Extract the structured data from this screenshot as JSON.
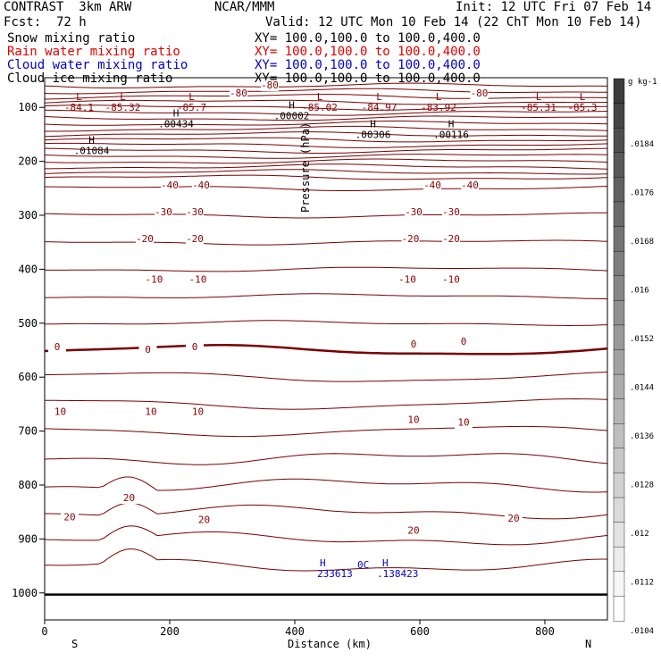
{
  "header": {
    "model": "CONTRAST  3km ARW",
    "org": "NCAR/MMM",
    "init": "Init: 12 UTC Fri 07 Feb 14",
    "fcst_label": "Fcst:",
    "fcst_value": "72 h",
    "valid": "Valid: 12 UTC Mon 10 Feb 14 (22 ChT Mon 10 Feb 14)"
  },
  "legend": [
    {
      "label": "Snow mixing ratio",
      "xy": "XY= 100.0,100.0 to 100.0,400.0",
      "color": "#000000"
    },
    {
      "label": "Rain water mixing ratio",
      "xy": "XY= 100.0,100.0 to 100.0,400.0",
      "color": "#e00000"
    },
    {
      "label": "Cloud water mixing ratio",
      "xy": "XY= 100.0,100.0 to 100.0,400.0",
      "color": "#0000cc"
    },
    {
      "label": "Cloud ice mixing ratio",
      "xy": "XY= 100.0,100.0 to 100.0,400.0",
      "color": "#000000"
    }
  ],
  "chart_data": {
    "type": "cross-section contour",
    "xlabel": "Distance (km)",
    "ylabel": "Pressure (hPa)",
    "xlim": [
      0,
      900
    ],
    "ylim": [
      1050,
      45
    ],
    "xticks": [
      0,
      200,
      400,
      600,
      800
    ],
    "yticks": [
      100,
      200,
      300,
      400,
      500,
      600,
      700,
      800,
      900,
      1000
    ],
    "x_end_labels": [
      "S",
      "N"
    ],
    "temperature_labels": [
      {
        "text": "-80",
        "x": 360,
        "p": 65
      },
      {
        "text": "-80",
        "x": 310,
        "p": 80
      },
      {
        "text": "-80",
        "x": 695,
        "p": 80
      },
      {
        "text": "-40",
        "x": 200,
        "p": 250
      },
      {
        "text": "-40",
        "x": 250,
        "p": 250
      },
      {
        "text": "-40",
        "x": 620,
        "p": 250
      },
      {
        "text": "-40",
        "x": 680,
        "p": 250
      },
      {
        "text": "-30",
        "x": 190,
        "p": 300
      },
      {
        "text": "-30",
        "x": 240,
        "p": 300
      },
      {
        "text": "-30",
        "x": 590,
        "p": 300
      },
      {
        "text": "-30",
        "x": 650,
        "p": 300
      },
      {
        "text": "-20",
        "x": 160,
        "p": 350
      },
      {
        "text": "-20",
        "x": 240,
        "p": 350
      },
      {
        "text": "-20",
        "x": 585,
        "p": 350
      },
      {
        "text": "-20",
        "x": 650,
        "p": 350
      },
      {
        "text": "-10",
        "x": 175,
        "p": 425
      },
      {
        "text": "-10",
        "x": 245,
        "p": 425
      },
      {
        "text": "-10",
        "x": 580,
        "p": 425
      },
      {
        "text": "-10",
        "x": 650,
        "p": 425
      },
      {
        "text": "0",
        "x": 20,
        "p": 550
      },
      {
        "text": "0",
        "x": 165,
        "p": 555
      },
      {
        "text": "0",
        "x": 240,
        "p": 550
      },
      {
        "text": "0",
        "x": 590,
        "p": 545
      },
      {
        "text": "0",
        "x": 670,
        "p": 540
      },
      {
        "text": "10",
        "x": 25,
        "p": 670
      },
      {
        "text": "10",
        "x": 170,
        "p": 670
      },
      {
        "text": "10",
        "x": 245,
        "p": 670
      },
      {
        "text": "10",
        "x": 590,
        "p": 685
      },
      {
        "text": "10",
        "x": 670,
        "p": 690
      },
      {
        "text": "20",
        "x": 40,
        "p": 865
      },
      {
        "text": "20",
        "x": 135,
        "p": 830
      },
      {
        "text": "20",
        "x": 255,
        "p": 870
      },
      {
        "text": "20",
        "x": 590,
        "p": 890
      },
      {
        "text": "20",
        "x": 750,
        "p": 868
      }
    ],
    "lows": [
      {
        "value": "-84.1",
        "x": 55
      },
      {
        "value": "-85.32",
        "x": 125
      },
      {
        "value": "-85.7",
        "x": 235
      },
      {
        "value": "-85.02",
        "x": 440
      },
      {
        "value": "-84.97",
        "x": 535
      },
      {
        "value": "-83.92",
        "x": 630
      },
      {
        "value": "-85.31",
        "x": 790
      },
      {
        "value": "-85.3",
        "x": 860
      }
    ],
    "snow_highs": [
      {
        "value": ".01084",
        "x": 75,
        "p": 180
      },
      {
        "value": ".00434",
        "x": 210,
        "p": 130
      },
      {
        "value": ".00002",
        "x": 395,
        "p": 115
      },
      {
        "value": ".00306",
        "x": 525,
        "p": 150
      },
      {
        "value": ".00116",
        "x": 650,
        "p": 150
      }
    ],
    "cloud_water": {
      "high_left": "233613",
      "high_right": ".138423",
      "center": "0C"
    },
    "colorbar": {
      "unit": "g kg-1",
      "labels": [
        ".0184",
        ".0176",
        ".0168",
        ".016",
        ".0152",
        ".0144",
        ".0136",
        ".0128",
        ".012",
        ".0112",
        ".0104"
      ]
    }
  }
}
